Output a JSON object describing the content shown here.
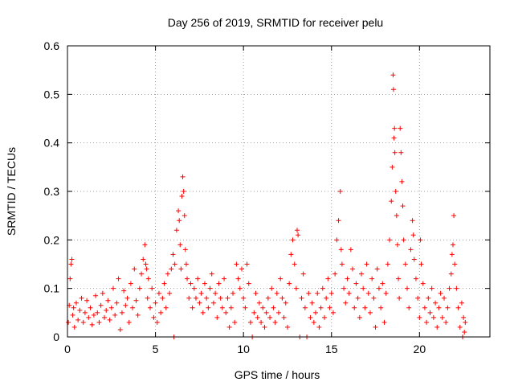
{
  "chart_data": {
    "type": "scatter",
    "title": "Day 256 of 2019, SRMTID for receiver pelu",
    "xlabel": "GPS time / hours",
    "ylabel": "SRMTID / TECUs",
    "xlim": [
      0,
      24
    ],
    "ylim": [
      0,
      0.6
    ],
    "xticks": [
      0,
      5,
      10,
      15,
      20
    ],
    "yticks": [
      0,
      0.1,
      0.2,
      0.3,
      0.4,
      0.5,
      0.6
    ],
    "xtick_labels": [
      "0",
      "5",
      "10",
      "15",
      "20"
    ],
    "ytick_labels": [
      "0",
      "0.1",
      "0.2",
      "0.3",
      "0.4",
      "0.5",
      "0.6"
    ],
    "grid": true,
    "marker": "+",
    "series": [
      {
        "name": "SRMTID",
        "color": "#ff0000",
        "points": [
          [
            0.05,
            0.03
          ],
          [
            0.1,
            0.065
          ],
          [
            0.15,
            0.12
          ],
          [
            0.2,
            0.15
          ],
          [
            0.25,
            0.16
          ],
          [
            0.3,
            0.045
          ],
          [
            0.35,
            0.06
          ],
          [
            0.4,
            0.02
          ],
          [
            0.5,
            0.07
          ],
          [
            0.6,
            0.035
          ],
          [
            0.7,
            0.055
          ],
          [
            0.8,
            0.08
          ],
          [
            0.9,
            0.03
          ],
          [
            1.0,
            0.05
          ],
          [
            1.1,
            0.075
          ],
          [
            1.2,
            0.04
          ],
          [
            1.3,
            0.06
          ],
          [
            1.4,
            0.025
          ],
          [
            1.5,
            0.045
          ],
          [
            1.6,
            0.085
          ],
          [
            1.7,
            0.05
          ],
          [
            1.8,
            0.03
          ],
          [
            1.9,
            0.065
          ],
          [
            2.0,
            0.09
          ],
          [
            2.1,
            0.04
          ],
          [
            2.2,
            0.055
          ],
          [
            2.3,
            0.075
          ],
          [
            2.4,
            0.035
          ],
          [
            2.5,
            0.06
          ],
          [
            2.6,
            0.1
          ],
          [
            2.7,
            0.045
          ],
          [
            2.8,
            0.07
          ],
          [
            2.9,
            0.12
          ],
          [
            3.0,
            0.015
          ],
          [
            3.1,
            0.05
          ],
          [
            3.2,
            0.095
          ],
          [
            3.3,
            0.065
          ],
          [
            3.4,
            0.08
          ],
          [
            3.5,
            0.03
          ],
          [
            3.6,
            0.11
          ],
          [
            3.7,
            0.06
          ],
          [
            3.8,
            0.14
          ],
          [
            3.9,
            0.075
          ],
          [
            4.0,
            0.045
          ],
          [
            4.1,
            0.1
          ],
          [
            4.2,
            0.13
          ],
          [
            4.3,
            0.16
          ],
          [
            4.4,
            0.19
          ],
          [
            4.45,
            0.15
          ],
          [
            4.5,
            0.14
          ],
          [
            4.55,
            0.08
          ],
          [
            4.6,
            0.12
          ],
          [
            4.7,
            0.06
          ],
          [
            4.8,
            0.1
          ],
          [
            4.9,
            0.04
          ],
          [
            5.0,
            0.07
          ],
          [
            5.1,
            0.03
          ],
          [
            5.2,
            0.09
          ],
          [
            5.3,
            0.05
          ],
          [
            5.4,
            0.08
          ],
          [
            5.5,
            0.11
          ],
          [
            5.6,
            0.06
          ],
          [
            5.7,
            0.13
          ],
          [
            5.8,
            0.09
          ],
          [
            5.9,
            0.14
          ],
          [
            6.0,
            0.17
          ],
          [
            6.05,
            0.0
          ],
          [
            6.1,
            0.15
          ],
          [
            6.2,
            0.22
          ],
          [
            6.3,
            0.26
          ],
          [
            6.35,
            0.24
          ],
          [
            6.4,
            0.19
          ],
          [
            6.45,
            0.14
          ],
          [
            6.5,
            0.29
          ],
          [
            6.55,
            0.33
          ],
          [
            6.6,
            0.3
          ],
          [
            6.65,
            0.25
          ],
          [
            6.7,
            0.18
          ],
          [
            6.75,
            0.15
          ],
          [
            6.8,
            0.12
          ],
          [
            6.9,
            0.08
          ],
          [
            7.0,
            0.11
          ],
          [
            7.1,
            0.06
          ],
          [
            7.2,
            0.1
          ],
          [
            7.3,
            0.08
          ],
          [
            7.4,
            0.12
          ],
          [
            7.5,
            0.07
          ],
          [
            7.6,
            0.09
          ],
          [
            7.7,
            0.05
          ],
          [
            7.8,
            0.11
          ],
          [
            7.9,
            0.08
          ],
          [
            8.0,
            0.06
          ],
          [
            8.1,
            0.1
          ],
          [
            8.2,
            0.13
          ],
          [
            8.3,
            0.07
          ],
          [
            8.4,
            0.09
          ],
          [
            8.5,
            0.04
          ],
          [
            8.6,
            0.11
          ],
          [
            8.7,
            0.08
          ],
          [
            8.8,
            0.06
          ],
          [
            8.9,
            0.12
          ],
          [
            9.0,
            0.05
          ],
          [
            9.1,
            0.08
          ],
          [
            9.2,
            0.02
          ],
          [
            9.3,
            0.06
          ],
          [
            9.4,
            0.09
          ],
          [
            9.5,
            0.03
          ],
          [
            9.6,
            0.15
          ],
          [
            9.7,
            0.12
          ],
          [
            9.8,
            0.1
          ],
          [
            9.9,
            0.14
          ],
          [
            10.0,
            0.08
          ],
          [
            10.1,
            0.06
          ],
          [
            10.2,
            0.15
          ],
          [
            10.3,
            0.11
          ],
          [
            10.4,
            0.03
          ],
          [
            10.5,
            0.0
          ],
          [
            10.6,
            0.05
          ],
          [
            10.7,
            0.09
          ],
          [
            10.8,
            0.04
          ],
          [
            10.9,
            0.07
          ],
          [
            11.0,
            0.03
          ],
          [
            11.1,
            0.06
          ],
          [
            11.2,
            0.02
          ],
          [
            11.3,
            0.05
          ],
          [
            11.4,
            0.08
          ],
          [
            11.5,
            0.04
          ],
          [
            11.6,
            0.1
          ],
          [
            11.7,
            0.06
          ],
          [
            11.8,
            0.03
          ],
          [
            11.9,
            0.09
          ],
          [
            12.0,
            0.05
          ],
          [
            12.1,
            0.12
          ],
          [
            12.2,
            0.08
          ],
          [
            12.3,
            0.04
          ],
          [
            12.4,
            0.07
          ],
          [
            12.5,
            0.02
          ],
          [
            12.6,
            0.11
          ],
          [
            12.7,
            0.17
          ],
          [
            12.8,
            0.2
          ],
          [
            12.9,
            0.15
          ],
          [
            13.0,
            0.1
          ],
          [
            13.05,
            0.22
          ],
          [
            13.1,
            0.21
          ],
          [
            13.2,
            0.0
          ],
          [
            13.3,
            0.08
          ],
          [
            13.4,
            0.13
          ],
          [
            13.5,
            0.06
          ],
          [
            13.6,
            0.0
          ],
          [
            13.7,
            0.09
          ],
          [
            13.8,
            0.04
          ],
          [
            13.9,
            0.07
          ],
          [
            14.0,
            0.03
          ],
          [
            14.1,
            0.05
          ],
          [
            14.2,
            0.09
          ],
          [
            14.3,
            0.02
          ],
          [
            14.4,
            0.06
          ],
          [
            14.5,
            0.1
          ],
          [
            14.6,
            0.04
          ],
          [
            14.7,
            0.08
          ],
          [
            14.8,
            0.12
          ],
          [
            14.9,
            0.06
          ],
          [
            15.0,
            0.09
          ],
          [
            15.1,
            0.05
          ],
          [
            15.2,
            0.13
          ],
          [
            15.3,
            0.2
          ],
          [
            15.4,
            0.24
          ],
          [
            15.5,
            0.3
          ],
          [
            15.55,
            0.18
          ],
          [
            15.6,
            0.15
          ],
          [
            15.7,
            0.1
          ],
          [
            15.8,
            0.07
          ],
          [
            15.9,
            0.12
          ],
          [
            16.0,
            0.09
          ],
          [
            16.1,
            0.18
          ],
          [
            16.2,
            0.14
          ],
          [
            16.3,
            0.06
          ],
          [
            16.4,
            0.11
          ],
          [
            16.5,
            0.08
          ],
          [
            16.6,
            0.04
          ],
          [
            16.7,
            0.13
          ],
          [
            16.8,
            0.1
          ],
          [
            16.9,
            0.06
          ],
          [
            17.0,
            0.15
          ],
          [
            17.1,
            0.09
          ],
          [
            17.2,
            0.05
          ],
          [
            17.3,
            0.12
          ],
          [
            17.4,
            0.08
          ],
          [
            17.5,
            0.02
          ],
          [
            17.6,
            0.14
          ],
          [
            17.7,
            0.1
          ],
          [
            17.8,
            0.06
          ],
          [
            17.9,
            0.11
          ],
          [
            18.0,
            0.03
          ],
          [
            18.1,
            0.09
          ],
          [
            18.2,
            0.15
          ],
          [
            18.3,
            0.2
          ],
          [
            18.4,
            0.28
          ],
          [
            18.45,
            0.35
          ],
          [
            18.5,
            0.54
          ],
          [
            18.52,
            0.51
          ],
          [
            18.55,
            0.41
          ],
          [
            18.58,
            0.43
          ],
          [
            18.6,
            0.38
          ],
          [
            18.65,
            0.3
          ],
          [
            18.7,
            0.25
          ],
          [
            18.75,
            0.19
          ],
          [
            18.8,
            0.12
          ],
          [
            18.85,
            0.08
          ],
          [
            18.9,
            0.43
          ],
          [
            18.95,
            0.38
          ],
          [
            19.0,
            0.32
          ],
          [
            19.05,
            0.27
          ],
          [
            19.1,
            0.2
          ],
          [
            19.2,
            0.15
          ],
          [
            19.3,
            0.1
          ],
          [
            19.4,
            0.06
          ],
          [
            19.5,
            0.18
          ],
          [
            19.6,
            0.24
          ],
          [
            19.65,
            0.21
          ],
          [
            19.7,
            0.16
          ],
          [
            19.8,
            0.12
          ],
          [
            19.9,
            0.08
          ],
          [
            20.0,
            0.04
          ],
          [
            20.05,
            0.2
          ],
          [
            20.1,
            0.15
          ],
          [
            20.2,
            0.11
          ],
          [
            20.3,
            0.06
          ],
          [
            20.4,
            0.03
          ],
          [
            20.5,
            0.08
          ],
          [
            20.6,
            0.05
          ],
          [
            20.7,
            0.1
          ],
          [
            20.8,
            0.04
          ],
          [
            20.9,
            0.07
          ],
          [
            21.0,
            0.02
          ],
          [
            21.1,
            0.06
          ],
          [
            21.2,
            0.09
          ],
          [
            21.3,
            0.04
          ],
          [
            21.4,
            0.08
          ],
          [
            21.5,
            0.03
          ],
          [
            21.6,
            0.06
          ],
          [
            21.7,
            0.1
          ],
          [
            21.8,
            0.13
          ],
          [
            21.85,
            0.17
          ],
          [
            21.9,
            0.19
          ],
          [
            21.95,
            0.25
          ],
          [
            22.0,
            0.15
          ],
          [
            22.1,
            0.1
          ],
          [
            22.2,
            0.06
          ],
          [
            22.3,
            0.02
          ],
          [
            22.4,
            0.07
          ],
          [
            22.45,
            0.0
          ],
          [
            22.5,
            0.04
          ],
          [
            22.55,
            0.01
          ],
          [
            22.6,
            0.03
          ]
        ]
      }
    ]
  }
}
